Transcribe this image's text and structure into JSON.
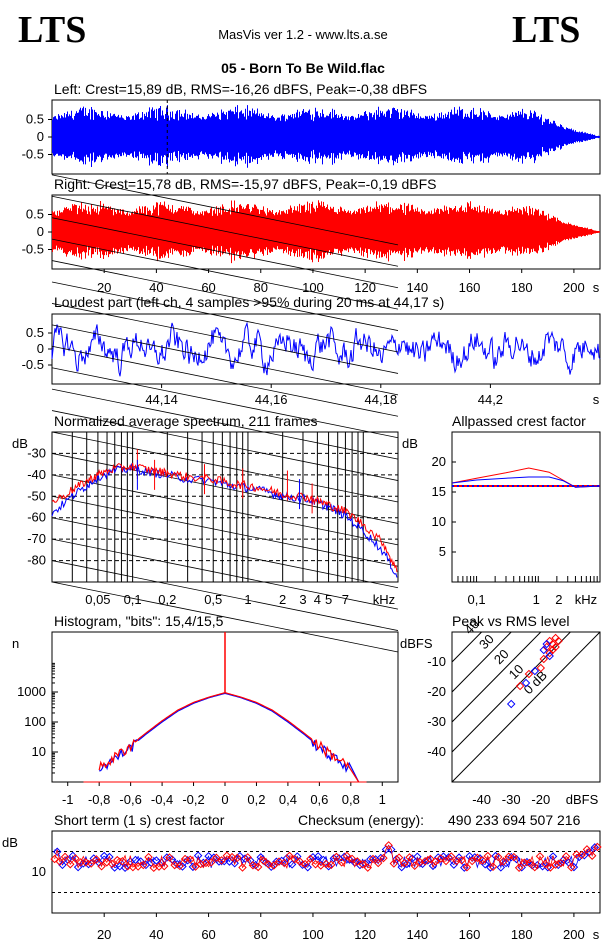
{
  "header": {
    "logo_left": "LTS",
    "logo_right": "LTS",
    "app_title": "MasVis ver 1.2 - www.lts.a.se",
    "file_title": "05 - Born To Be Wild.flac"
  },
  "colors": {
    "left": "#0000ff",
    "right": "#ff0000",
    "grid": "#000000"
  },
  "chart_data": [
    {
      "type": "line",
      "title": "Left: Crest=15,89 dB, RMS=-16,26 dBFS, Peak=-0,38 dBFS",
      "yticks": [
        "0.5",
        "0",
        "-0.5"
      ],
      "xlim": [
        0,
        210
      ],
      "marker_x": 44.17,
      "envelope_peak": 0.95
    },
    {
      "type": "line",
      "title": "Right: Crest=15,78 dB, RMS=-15,97 dBFS, Peak=-0,19 dBFS",
      "yticks": [
        "0.5",
        "0",
        "-0.5"
      ],
      "xticks": [
        "20",
        "40",
        "60",
        "80",
        "100",
        "120",
        "140",
        "160",
        "180",
        "200"
      ],
      "xtick_values": [
        20,
        40,
        60,
        80,
        100,
        120,
        140,
        160,
        180,
        200
      ],
      "xunit": "s",
      "xlim": [
        0,
        210
      ],
      "envelope_peak": 0.98
    },
    {
      "type": "line",
      "title": "Loudest part (left  ch, 4 samples >95% during 20 ms at 44,17 s)",
      "yticks": [
        "0.5",
        "0",
        "-0.5"
      ],
      "xticks": [
        "44,14",
        "44,16",
        "44,18",
        "44,2"
      ],
      "xtick_values": [
        44.14,
        44.16,
        44.18,
        44.2
      ],
      "xunit": "s",
      "xlim": [
        44.12,
        44.22
      ]
    },
    {
      "type": "line",
      "title": "Normalized average spectrum, 211 frames",
      "ylabel": "dB",
      "yticks": [
        "-30",
        "-40",
        "-50",
        "-60",
        "-70",
        "-80"
      ],
      "ytick_values": [
        -30,
        -40,
        -50,
        -60,
        -70,
        -80
      ],
      "xticks": [
        "0,05",
        "0,1",
        "0,2",
        "0,5",
        "1",
        "2",
        "3",
        "4",
        "5",
        "7"
      ],
      "xtick_values": [
        0.05,
        0.1,
        0.2,
        0.5,
        1,
        2,
        3,
        4,
        5,
        7
      ],
      "xunit": "kHz",
      "xscale": "log",
      "xlim": [
        0.02,
        20
      ],
      "ylim": [
        -90,
        -20
      ],
      "series": [
        {
          "color": "#0000ff",
          "x": [
            0.02,
            0.03,
            0.04,
            0.05,
            0.07,
            0.1,
            0.15,
            0.2,
            0.3,
            0.5,
            0.7,
            1,
            1.5,
            2,
            3,
            4,
            5,
            7,
            10,
            15,
            20
          ],
          "y": [
            -58,
            -50,
            -45,
            -41,
            -38,
            -37,
            -39,
            -40,
            -42,
            -43,
            -45,
            -46,
            -48,
            -50,
            -51,
            -53,
            -55,
            -59,
            -66,
            -76,
            -88
          ]
        },
        {
          "color": "#ff0000",
          "x": [
            0.02,
            0.03,
            0.04,
            0.05,
            0.07,
            0.1,
            0.15,
            0.2,
            0.3,
            0.5,
            0.7,
            1,
            1.5,
            2,
            3,
            4,
            5,
            7,
            10,
            15,
            20
          ],
          "y": [
            -53,
            -47,
            -43,
            -40,
            -37,
            -36,
            -38,
            -39,
            -41,
            -42,
            -44,
            -45,
            -47,
            -49,
            -50,
            -52,
            -54,
            -57,
            -63,
            -72,
            -86
          ]
        }
      ],
      "peaks": [
        {
          "color": "#ff0000",
          "x": 0.11,
          "y": -28
        },
        {
          "color": "#ff0000",
          "x": 0.155,
          "y": -33
        },
        {
          "color": "#0000ff",
          "x": 0.11,
          "y": -33
        },
        {
          "color": "#ff0000",
          "x": 0.42,
          "y": -35
        },
        {
          "color": "#ff0000",
          "x": 0.9,
          "y": -37
        },
        {
          "color": "#ff0000",
          "x": 2.2,
          "y": -38
        },
        {
          "color": "#0000ff",
          "x": 2.8,
          "y": -42
        },
        {
          "color": "#ff0000",
          "x": 3.6,
          "y": -44
        }
      ]
    },
    {
      "type": "line",
      "title": "Allpassed crest factor",
      "ylabel": "dB",
      "yticks": [
        "20",
        "15",
        "10",
        "5"
      ],
      "ytick_values": [
        20,
        15,
        10,
        5
      ],
      "xticks": [
        "0,1",
        "1",
        "2",
        "kHz"
      ],
      "xtick_values": [
        0.1,
        1,
        2
      ],
      "xscale": "log",
      "xlim": [
        0.04,
        10
      ],
      "ylim": [
        0,
        25
      ],
      "baseline": 16,
      "series": [
        {
          "color": "#ff0000",
          "x": [
            0.04,
            0.1,
            0.3,
            0.7,
            1.5,
            2.5,
            4,
            10
          ],
          "y": [
            16.5,
            17.3,
            18.2,
            19,
            18.3,
            17,
            15.8,
            16
          ]
        },
        {
          "color": "#0000ff",
          "x": [
            0.04,
            0.1,
            0.3,
            0.7,
            1.5,
            2.5,
            4,
            10
          ],
          "y": [
            16.5,
            17,
            17.3,
            17.5,
            17.5,
            16.9,
            15.8,
            16
          ]
        }
      ]
    },
    {
      "type": "line",
      "title": "Histogram, \"bits\": 15,4/15,5",
      "ylabel": "n",
      "yscale": "log",
      "yticks": [
        "1000",
        "100",
        "10"
      ],
      "ytick_values": [
        1000,
        100,
        10
      ],
      "xticks": [
        "-1",
        "-0,8",
        "-0,6",
        "-0,4",
        "-0,2",
        "0",
        "0,2",
        "0,4",
        "0,6",
        "0,8",
        "1"
      ],
      "xtick_values": [
        -1,
        -0.8,
        -0.6,
        -0.4,
        -0.2,
        0,
        0.2,
        0.4,
        0.6,
        0.8,
        1
      ],
      "xlim": [
        -1.1,
        1.1
      ],
      "ylim": [
        1,
        100000
      ],
      "series": [
        {
          "color": "#0000ff",
          "x": [
            -0.8,
            -0.7,
            -0.6,
            -0.5,
            -0.4,
            -0.3,
            -0.2,
            -0.1,
            0,
            0.1,
            0.2,
            0.3,
            0.4,
            0.5,
            0.6,
            0.7,
            0.8
          ],
          "y": [
            3,
            6,
            15,
            40,
            100,
            230,
            420,
            650,
            900,
            650,
            420,
            230,
            100,
            40,
            15,
            6,
            3
          ]
        },
        {
          "color": "#ff0000",
          "x": [
            -0.8,
            -0.7,
            -0.6,
            -0.5,
            -0.4,
            -0.3,
            -0.2,
            -0.1,
            0,
            0.1,
            0.2,
            0.3,
            0.4,
            0.5,
            0.6,
            0.7,
            0.8
          ],
          "y": [
            3,
            7,
            17,
            44,
            110,
            250,
            450,
            680,
            950,
            680,
            450,
            250,
            110,
            44,
            17,
            7,
            3
          ]
        }
      ]
    },
    {
      "type": "scatter",
      "title": "Peak vs RMS level",
      "ylabel": "dBFS",
      "xlabel": "dBFS",
      "yticks": [
        "-10",
        "-20",
        "-30",
        "-40"
      ],
      "ytick_values": [
        -10,
        -20,
        -30,
        -40
      ],
      "xticks": [
        "-40",
        "-30",
        "-20"
      ],
      "xtick_values": [
        -40,
        -30,
        -20
      ],
      "xlim": [
        -50,
        0
      ],
      "ylim": [
        -50,
        0
      ],
      "diagonal_labels": [
        "40",
        "30",
        "20",
        "10",
        "0 dB"
      ],
      "diagonal_offsets": [
        40,
        30,
        20,
        10,
        0
      ],
      "series": [
        {
          "color": "#ff0000",
          "x": [
            -18,
            -17,
            -16,
            -15,
            -16,
            -14,
            -17,
            -15,
            -19,
            -20,
            -24,
            -27
          ],
          "y": [
            -5,
            -3,
            -4,
            -2,
            -6,
            -3,
            -7,
            -5,
            -9,
            -12,
            -14,
            -18
          ]
        },
        {
          "color": "#0000ff",
          "x": [
            -19,
            -18,
            -17,
            -22,
            -25,
            -30
          ],
          "y": [
            -6,
            -4,
            -8,
            -13,
            -17,
            -24
          ]
        }
      ]
    },
    {
      "type": "scatter",
      "title": "Short term (1 s) crest factor",
      "checksum_label": "Checksum (energy):",
      "checksum_value": "490 233 694 507 216",
      "ylabel": "dB",
      "yticks": [
        "10"
      ],
      "ytick_values": [
        10
      ],
      "xticks": [
        "20",
        "40",
        "60",
        "80",
        "100",
        "120",
        "140",
        "160",
        "180",
        "200"
      ],
      "xtick_values": [
        20,
        40,
        60,
        80,
        100,
        120,
        140,
        160,
        180,
        200
      ],
      "xunit": "s",
      "xlim": [
        0,
        210
      ],
      "ylim": [
        0,
        20
      ],
      "ref_lines": [
        5,
        15
      ],
      "approx_mean": 12.5,
      "spike_x": 129,
      "spike_y": 16.5
    }
  ]
}
